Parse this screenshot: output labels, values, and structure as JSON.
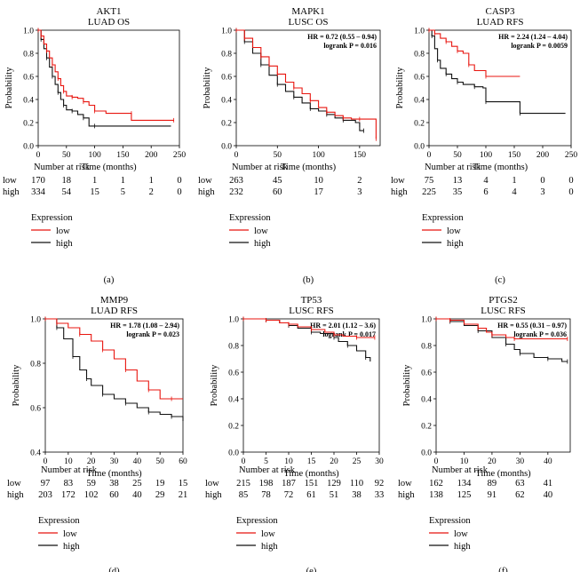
{
  "figure": {
    "caption_risk": "Number at risk",
    "caption_expression": "Expression",
    "legend_low": "low",
    "legend_high": "high",
    "colors": {
      "low": "#e8150f",
      "high": "#111111",
      "axis": "#000000"
    }
  },
  "chart_data": [
    {
      "type": "line",
      "panel_label": "(a)",
      "title": "AKT1",
      "subtitle": "LUAD OS",
      "xlabel": "Time (months)",
      "ylabel": "Probability",
      "xlim": [
        0,
        250
      ],
      "ylim": [
        0,
        1
      ],
      "xticks": [
        "0",
        "50",
        "100",
        "150",
        "200",
        "250"
      ],
      "yticks": [
        "0.0",
        "0.2",
        "0.4",
        "0.6",
        "0.8",
        "1.0"
      ],
      "hr_text": "",
      "p_text": "",
      "series": [
        {
          "name": "low",
          "points": [
            [
              0,
              1
            ],
            [
              5,
              0.95
            ],
            [
              10,
              0.88
            ],
            [
              15,
              0.82
            ],
            [
              20,
              0.76
            ],
            [
              25,
              0.7
            ],
            [
              30,
              0.64
            ],
            [
              35,
              0.58
            ],
            [
              40,
              0.52
            ],
            [
              45,
              0.47
            ],
            [
              50,
              0.43
            ],
            [
              60,
              0.42
            ],
            [
              70,
              0.41
            ],
            [
              80,
              0.38
            ],
            [
              90,
              0.35
            ],
            [
              100,
              0.3
            ],
            [
              120,
              0.28
            ],
            [
              165,
              0.28
            ],
            [
              165,
              0.22
            ],
            [
              240,
              0.22
            ]
          ]
        },
        {
          "name": "high",
          "points": [
            [
              0,
              1
            ],
            [
              5,
              0.92
            ],
            [
              10,
              0.84
            ],
            [
              15,
              0.76
            ],
            [
              20,
              0.68
            ],
            [
              25,
              0.6
            ],
            [
              30,
              0.53
            ],
            [
              35,
              0.46
            ],
            [
              40,
              0.4
            ],
            [
              45,
              0.35
            ],
            [
              50,
              0.31
            ],
            [
              60,
              0.3
            ],
            [
              70,
              0.27
            ],
            [
              80,
              0.24
            ],
            [
              90,
              0.17
            ],
            [
              100,
              0.17
            ],
            [
              235,
              0.17
            ]
          ]
        }
      ],
      "risk_x": [
        0,
        50,
        100,
        150,
        200,
        250
      ],
      "risk": [
        {
          "label": "low",
          "values": [
            "170",
            "18",
            "1",
            "1",
            "1",
            "0"
          ]
        },
        {
          "label": "high",
          "values": [
            "334",
            "54",
            "15",
            "5",
            "2",
            "0"
          ]
        }
      ]
    },
    {
      "type": "line",
      "panel_label": "(b)",
      "title": "MAPK1",
      "subtitle": "LUSC OS",
      "xlabel": "Time (months)",
      "ylabel": "Probability",
      "xlim": [
        0,
        175
      ],
      "ylim": [
        0,
        1
      ],
      "xticks": [
        "0",
        "50",
        "100",
        "150"
      ],
      "yticks": [
        "0.0",
        "0.2",
        "0.4",
        "0.6",
        "0.8",
        "1.0"
      ],
      "hr_text": "HR = 0.72 (0.55 – 0.94)",
      "p_text": "logrank P = 0.016",
      "series": [
        {
          "name": "low",
          "points": [
            [
              0,
              1
            ],
            [
              10,
              0.93
            ],
            [
              20,
              0.85
            ],
            [
              30,
              0.77
            ],
            [
              40,
              0.69
            ],
            [
              50,
              0.62
            ],
            [
              60,
              0.55
            ],
            [
              70,
              0.5
            ],
            [
              80,
              0.45
            ],
            [
              90,
              0.39
            ],
            [
              100,
              0.33
            ],
            [
              110,
              0.29
            ],
            [
              120,
              0.26
            ],
            [
              130,
              0.24
            ],
            [
              140,
              0.23
            ],
            [
              150,
              0.23
            ],
            [
              170,
              0.23
            ],
            [
              170,
              0.06
            ]
          ]
        },
        {
          "name": "high",
          "points": [
            [
              0,
              1
            ],
            [
              10,
              0.9
            ],
            [
              20,
              0.8
            ],
            [
              30,
              0.7
            ],
            [
              40,
              0.61
            ],
            [
              50,
              0.53
            ],
            [
              60,
              0.47
            ],
            [
              70,
              0.42
            ],
            [
              80,
              0.37
            ],
            [
              90,
              0.32
            ],
            [
              100,
              0.3
            ],
            [
              110,
              0.27
            ],
            [
              120,
              0.24
            ],
            [
              130,
              0.22
            ],
            [
              145,
              0.2
            ],
            [
              150,
              0.18
            ],
            [
              150,
              0.13
            ],
            [
              155,
              0.13
            ]
          ]
        }
      ],
      "risk_x": [
        0,
        50,
        100,
        150
      ],
      "risk": [
        {
          "label": "low",
          "values": [
            "263",
            "45",
            "10",
            "2"
          ]
        },
        {
          "label": "high",
          "values": [
            "232",
            "60",
            "17",
            "3"
          ]
        }
      ]
    },
    {
      "type": "line",
      "panel_label": "(c)",
      "title": "CASP3",
      "subtitle": "LUAD RFS",
      "xlabel": "Time (months)",
      "ylabel": "Probability",
      "xlim": [
        0,
        250
      ],
      "ylim": [
        0,
        1
      ],
      "xticks": [
        "0",
        "50",
        "100",
        "150",
        "200",
        "250"
      ],
      "yticks": [
        "0.0",
        "0.2",
        "0.4",
        "0.6",
        "0.8",
        "1.0"
      ],
      "hr_text": "HR = 2.24 (1.24 – 4.04)",
      "p_text": "logrank P = 0.0059",
      "series": [
        {
          "name": "low",
          "points": [
            [
              0,
              1
            ],
            [
              10,
              0.97
            ],
            [
              20,
              0.93
            ],
            [
              30,
              0.9
            ],
            [
              40,
              0.86
            ],
            [
              50,
              0.82
            ],
            [
              60,
              0.8
            ],
            [
              70,
              0.7
            ],
            [
              80,
              0.65
            ],
            [
              100,
              0.6
            ],
            [
              160,
              0.6
            ]
          ]
        },
        {
          "name": "high",
          "points": [
            [
              0,
              1
            ],
            [
              5,
              0.95
            ],
            [
              10,
              0.84
            ],
            [
              15,
              0.74
            ],
            [
              20,
              0.67
            ],
            [
              30,
              0.62
            ],
            [
              40,
              0.58
            ],
            [
              50,
              0.55
            ],
            [
              60,
              0.53
            ],
            [
              80,
              0.51
            ],
            [
              95,
              0.5
            ],
            [
              100,
              0.38
            ],
            [
              160,
              0.38
            ],
            [
              160,
              0.28
            ],
            [
              240,
              0.28
            ]
          ]
        }
      ],
      "risk_x": [
        0,
        50,
        100,
        150,
        200,
        250
      ],
      "risk": [
        {
          "label": "low",
          "values": [
            "75",
            "13",
            "4",
            "1",
            "0",
            "0"
          ]
        },
        {
          "label": "high",
          "values": [
            "225",
            "35",
            "6",
            "4",
            "3",
            "0"
          ]
        }
      ]
    },
    {
      "type": "line",
      "panel_label": "(d)",
      "title": "MMP9",
      "subtitle": "LUAD RFS",
      "xlabel": "Time (months)",
      "ylabel": "Probability",
      "xlim": [
        0,
        60
      ],
      "ylim": [
        0.4,
        1
      ],
      "xticks": [
        "0",
        "10",
        "20",
        "30",
        "40",
        "50",
        "60"
      ],
      "yticks": [
        "0.4",
        "0.6",
        "0.8",
        "1.0"
      ],
      "hr_text": "HR = 1.78 (1.08 – 2.94)",
      "p_text": "logrank P = 0.023",
      "series": [
        {
          "name": "low",
          "points": [
            [
              0,
              1
            ],
            [
              5,
              0.98
            ],
            [
              10,
              0.96
            ],
            [
              15,
              0.93
            ],
            [
              20,
              0.9
            ],
            [
              25,
              0.86
            ],
            [
              30,
              0.82
            ],
            [
              35,
              0.77
            ],
            [
              40,
              0.72
            ],
            [
              45,
              0.68
            ],
            [
              50,
              0.64
            ],
            [
              55,
              0.64
            ],
            [
              60,
              0.64
            ]
          ]
        },
        {
          "name": "high",
          "points": [
            [
              0,
              1
            ],
            [
              5,
              0.96
            ],
            [
              8,
              0.91
            ],
            [
              12,
              0.83
            ],
            [
              15,
              0.77
            ],
            [
              18,
              0.73
            ],
            [
              20,
              0.7
            ],
            [
              25,
              0.66
            ],
            [
              30,
              0.64
            ],
            [
              35,
              0.62
            ],
            [
              40,
              0.6
            ],
            [
              45,
              0.58
            ],
            [
              50,
              0.57
            ],
            [
              55,
              0.56
            ],
            [
              60,
              0.54
            ]
          ]
        }
      ],
      "risk_x": [
        0,
        10,
        20,
        30,
        40,
        50,
        60
      ],
      "risk": [
        {
          "label": "low",
          "values": [
            "97",
            "83",
            "59",
            "38",
            "25",
            "19",
            "15"
          ]
        },
        {
          "label": "high",
          "values": [
            "203",
            "172",
            "102",
            "60",
            "40",
            "29",
            "21"
          ]
        }
      ]
    },
    {
      "type": "line",
      "panel_label": "(e)",
      "title": "TP53",
      "subtitle": "LUSC RFS",
      "xlabel": "Time (months)",
      "ylabel": "Probability",
      "xlim": [
        0,
        30
      ],
      "ylim": [
        0,
        1
      ],
      "xticks": [
        "0",
        "5",
        "10",
        "15",
        "20",
        "25",
        "30"
      ],
      "yticks": [
        "0.0",
        "0.2",
        "0.4",
        "0.6",
        "0.8",
        "1.0"
      ],
      "hr_text": "HR = 2.01 (1.12 – 3.6)",
      "p_text": "logrank P = 0.017",
      "series": [
        {
          "name": "low",
          "points": [
            [
              0,
              1
            ],
            [
              5,
              0.99
            ],
            [
              8,
              0.97
            ],
            [
              10,
              0.96
            ],
            [
              12,
              0.94
            ],
            [
              15,
              0.92
            ],
            [
              18,
              0.9
            ],
            [
              20,
              0.88
            ],
            [
              22,
              0.87
            ],
            [
              25,
              0.86
            ],
            [
              28,
              0.86
            ],
            [
              29,
              0.86
            ]
          ]
        },
        {
          "name": "high",
          "points": [
            [
              0,
              1
            ],
            [
              5,
              0.99
            ],
            [
              8,
              0.97
            ],
            [
              10,
              0.95
            ],
            [
              12,
              0.93
            ],
            [
              15,
              0.9
            ],
            [
              17,
              0.89
            ],
            [
              20,
              0.86
            ],
            [
              21,
              0.83
            ],
            [
              23,
              0.8
            ],
            [
              25,
              0.76
            ],
            [
              27,
              0.71
            ],
            [
              28,
              0.68
            ]
          ]
        }
      ],
      "risk_x": [
        0,
        5,
        10,
        15,
        20,
        25,
        30
      ],
      "risk": [
        {
          "label": "low",
          "values": [
            "215",
            "198",
            "187",
            "151",
            "129",
            "110",
            "92"
          ]
        },
        {
          "label": "high",
          "values": [
            "85",
            "78",
            "72",
            "61",
            "51",
            "38",
            "33"
          ]
        }
      ]
    },
    {
      "type": "line",
      "panel_label": "(f)",
      "title": "PTGS2",
      "subtitle": "LUSC RFS",
      "xlabel": "Time (months)",
      "ylabel": "Probability",
      "xlim": [
        0,
        48
      ],
      "ylim": [
        0,
        1
      ],
      "xticks": [
        "0",
        "10",
        "20",
        "30",
        "40"
      ],
      "yticks": [
        "0.0",
        "0.2",
        "0.4",
        "0.6",
        "0.8",
        "1.0"
      ],
      "hr_text": "HR = 0.55 (0.31 – 0.97)",
      "p_text": "logrank P = 0.036",
      "series": [
        {
          "name": "low",
          "points": [
            [
              0,
              1
            ],
            [
              5,
              0.99
            ],
            [
              10,
              0.96
            ],
            [
              15,
              0.93
            ],
            [
              18,
              0.9
            ],
            [
              20,
              0.88
            ],
            [
              25,
              0.86
            ],
            [
              28,
              0.85
            ],
            [
              35,
              0.85
            ],
            [
              47,
              0.85
            ]
          ]
        },
        {
          "name": "high",
          "points": [
            [
              0,
              1
            ],
            [
              5,
              0.98
            ],
            [
              10,
              0.95
            ],
            [
              15,
              0.91
            ],
            [
              20,
              0.86
            ],
            [
              25,
              0.81
            ],
            [
              28,
              0.77
            ],
            [
              30,
              0.74
            ],
            [
              35,
              0.71
            ],
            [
              40,
              0.7
            ],
            [
              45,
              0.68
            ],
            [
              47,
              0.68
            ]
          ]
        }
      ],
      "risk_x": [
        0,
        10,
        20,
        30,
        40
      ],
      "risk": [
        {
          "label": "low",
          "values": [
            "162",
            "134",
            "89",
            "63",
            "41"
          ]
        },
        {
          "label": "high",
          "values": [
            "138",
            "125",
            "91",
            "62",
            "40"
          ]
        }
      ]
    }
  ]
}
